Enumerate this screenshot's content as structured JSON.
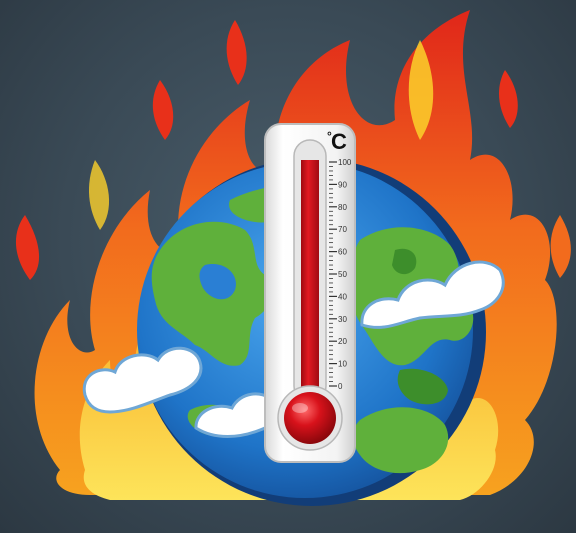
{
  "thermometer": {
    "unit": "°C",
    "unit_degree": "°",
    "unit_letter": "C",
    "scale_max": 100,
    "scale_min": 0,
    "ticks": [
      "100",
      "90",
      "80",
      "70",
      "60",
      "50",
      "40",
      "30",
      "20",
      "10",
      "0"
    ],
    "fill_level_fraction": 1.0
  },
  "colors": {
    "background": "#3a4a56",
    "flame_outer": "#e8301a",
    "flame_mid": "#f57c1f",
    "flame_inner": "#fcd12a",
    "ocean": "#2a7fd4",
    "land": "#5fb03b",
    "cloud": "#ffffff",
    "mercury": "#d8121b"
  },
  "icons": {
    "main": "earth-on-fire-icon",
    "instrument": "thermometer-icon"
  }
}
